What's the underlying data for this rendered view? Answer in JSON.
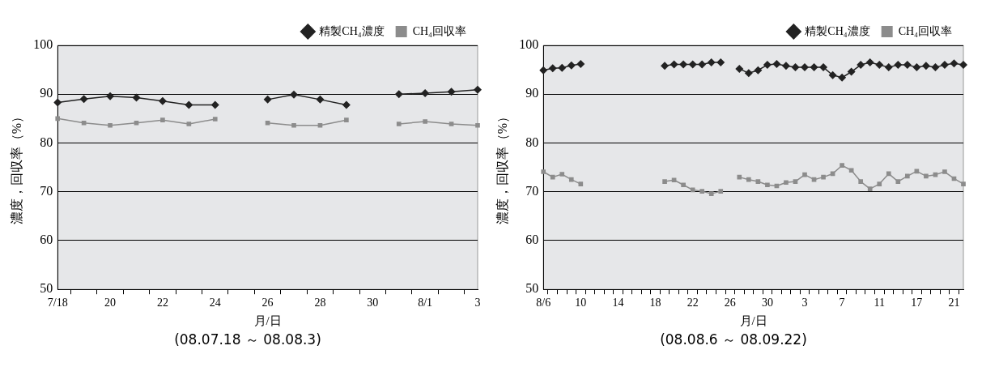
{
  "chart_data": [
    {
      "type": "line",
      "xlabel": "月/日",
      "ylabel": "濃度，回収率（%）",
      "annotations": [
        "(08.07.18 ～ 08.08.3)"
      ],
      "categories": [
        "7/18",
        null,
        "20",
        null,
        "22",
        null,
        "24",
        null,
        "26",
        null,
        "28",
        null,
        "30",
        null,
        "8/1",
        null,
        "3"
      ],
      "series": [
        {
          "name": "精製CH₄濃度",
          "color": "#222222",
          "marker": "diamond",
          "values": [
            88.3,
            89.0,
            89.6,
            89.3,
            88.6,
            87.8,
            87.8,
            null,
            88.9,
            89.9,
            88.9,
            87.8,
            null,
            90.0,
            90.2,
            90.5,
            90.9
          ]
        },
        {
          "name": "CH₄回収率",
          "color": "#8c8c8c",
          "marker": "square",
          "values": [
            85.0,
            84.1,
            83.6,
            84.1,
            84.7,
            83.9,
            84.9,
            null,
            84.1,
            83.6,
            83.6,
            84.7,
            null,
            83.9,
            84.4,
            83.9,
            83.6
          ]
        }
      ],
      "ylim": [
        50,
        100
      ],
      "yticks": [
        50,
        60,
        70,
        80,
        90,
        100
      ],
      "grid": "y",
      "legend": "top right",
      "line_style": "solid"
    },
    {
      "type": "line",
      "xlabel": "月/日",
      "ylabel": "濃度，回収率（%）",
      "annotations": [
        "(08.08.6 ～ 08.09.22)"
      ],
      "categories": [
        "8/6",
        null,
        null,
        null,
        "10",
        null,
        null,
        null,
        "14",
        null,
        null,
        null,
        "18",
        null,
        null,
        null,
        "22",
        null,
        null,
        null,
        "26",
        null,
        null,
        null,
        "30",
        null,
        null,
        null,
        "3",
        null,
        null,
        null,
        "7",
        null,
        null,
        null,
        "11",
        null,
        null,
        null,
        "17",
        null,
        null,
        null,
        "21",
        null
      ],
      "series": [
        {
          "name": "精製CH₄濃度",
          "color": "#222222",
          "marker": "diamond",
          "values": [
            94.9,
            95.3,
            95.4,
            95.9,
            96.2,
            null,
            null,
            null,
            null,
            null,
            null,
            null,
            null,
            95.8,
            96.1,
            96.1,
            96.1,
            96.1,
            96.5,
            96.5,
            null,
            95.2,
            94.3,
            94.9,
            96.0,
            96.2,
            95.8,
            95.5,
            95.5,
            95.5,
            95.5,
            93.9,
            93.4,
            94.6,
            96.0,
            96.5,
            96.0,
            95.5,
            96.0,
            96.0,
            95.5,
            95.8,
            95.5,
            96.0,
            96.3,
            96.0
          ]
        },
        {
          "name": "CH₄回収率",
          "color": "#8c8c8c",
          "marker": "square",
          "values": [
            74.1,
            73.0,
            73.6,
            72.5,
            71.6,
            null,
            null,
            null,
            null,
            null,
            null,
            null,
            null,
            72.1,
            72.4,
            71.4,
            70.4,
            70.1,
            69.6,
            70.1,
            null,
            73.0,
            72.5,
            72.1,
            71.4,
            71.2,
            71.9,
            72.1,
            73.5,
            72.5,
            73.0,
            73.7,
            75.4,
            74.4,
            72.1,
            70.6,
            71.6,
            73.7,
            72.1,
            73.2,
            74.2,
            73.2,
            73.5,
            74.1,
            72.7,
            71.6
          ]
        }
      ],
      "ylim": [
        50,
        100
      ],
      "yticks": [
        50,
        60,
        70,
        80,
        90,
        100
      ],
      "grid": "y",
      "legend": "top right",
      "line_style": "solid"
    }
  ]
}
